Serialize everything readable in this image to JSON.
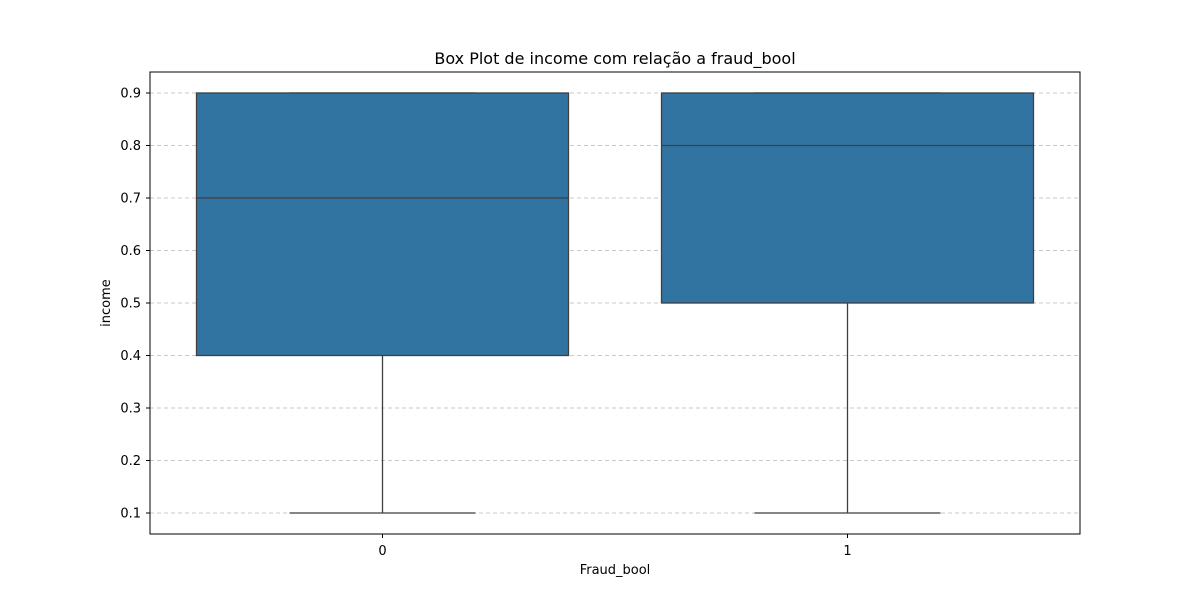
{
  "chart_data": {
    "type": "box",
    "title": "Box Plot de income com relação a fraud_bool",
    "xlabel": "Fraud_bool",
    "ylabel": "income",
    "categories": [
      "0",
      "1"
    ],
    "boxes": [
      {
        "category": "0",
        "whisker_low": 0.1,
        "q1": 0.4,
        "median": 0.7,
        "q3": 0.9,
        "whisker_high": 0.9
      },
      {
        "category": "1",
        "whisker_low": 0.1,
        "q1": 0.5,
        "median": 0.8,
        "q3": 0.9,
        "whisker_high": 0.9
      }
    ],
    "yticks": [
      0.1,
      0.2,
      0.3,
      0.4,
      0.5,
      0.6,
      0.7,
      0.8,
      0.9
    ],
    "ytick_labels": [
      "0.1",
      "0.2",
      "0.3",
      "0.4",
      "0.5",
      "0.6",
      "0.7",
      "0.8",
      "0.9"
    ],
    "ylim": [
      0.06,
      0.94
    ],
    "grid": "y-dashed",
    "colors": {
      "box_fill": "#3274a1",
      "line": "#3f3f3f",
      "grid": "#c8c8c8",
      "axis": "#000000"
    }
  }
}
